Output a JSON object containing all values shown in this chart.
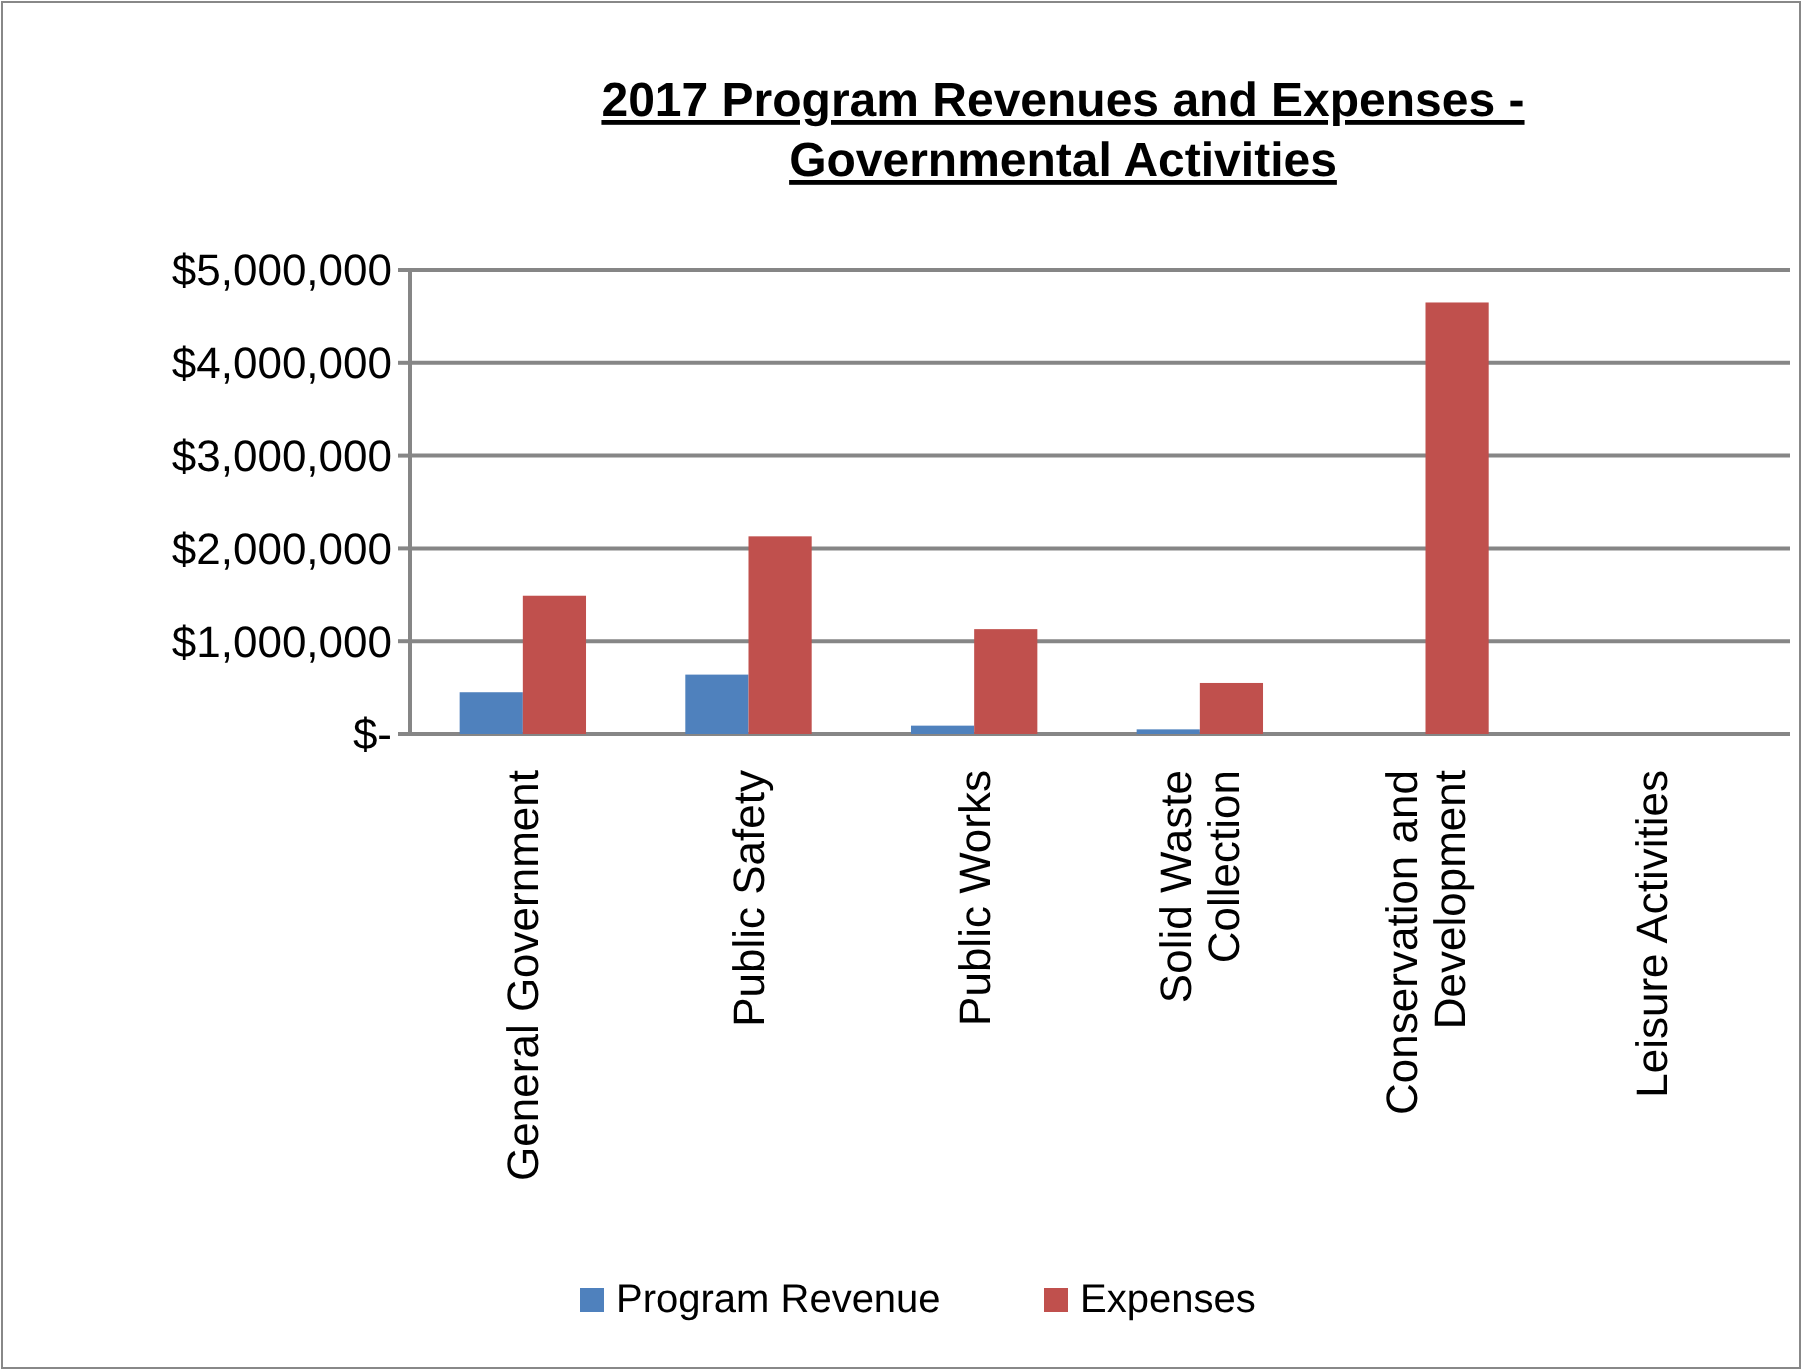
{
  "chart_data": {
    "type": "bar",
    "title": "2017 Program Revenues and Expenses - Governmental Activities",
    "categories": [
      "General Government",
      "Public Safety",
      "Public Works",
      "Solid Waste Collection",
      "Conservation and Development",
      "Leisure Activities"
    ],
    "series": [
      {
        "name": "Program Revenue",
        "color": "#4f81bd",
        "values": [
          450000,
          640000,
          90000,
          50000,
          null,
          null
        ]
      },
      {
        "name": "Expenses",
        "color": "#c0504d",
        "values": [
          1490000,
          2130000,
          1130000,
          550000,
          4650000,
          null
        ]
      }
    ],
    "ylim": [
      0,
      5000000
    ],
    "yticks": [
      {
        "value": 0,
        "label": "$-"
      },
      {
        "value": 1000000,
        "label": "$1,000,000"
      },
      {
        "value": 2000000,
        "label": "$2,000,000"
      },
      {
        "value": 3000000,
        "label": "$3,000,000"
      },
      {
        "value": 4000000,
        "label": "$4,000,000"
      },
      {
        "value": 5000000,
        "label": "$5,000,000"
      }
    ],
    "grid": "y",
    "legend": "bottom"
  }
}
